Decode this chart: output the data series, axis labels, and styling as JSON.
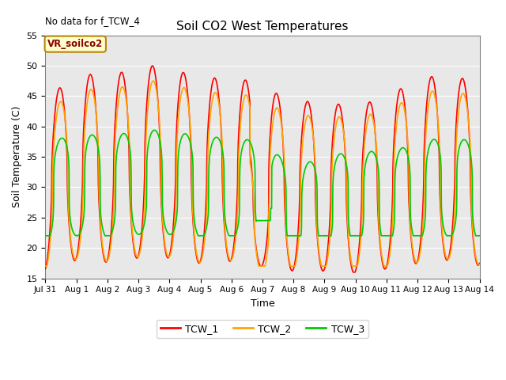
{
  "title": "Soil CO2 West Temperatures",
  "no_data_text": "No data for f_TCW_4",
  "ylabel": "Soil Temperature (C)",
  "xlabel": "Time",
  "ylim": [
    15,
    55
  ],
  "yticks": [
    15,
    20,
    25,
    30,
    35,
    40,
    45,
    50,
    55
  ],
  "background_color": "#e8e8e8",
  "legend_box_label": "VR_soilco2",
  "legend_entries": [
    "TCW_1",
    "TCW_2",
    "TCW_3"
  ],
  "line_colors": [
    "#ff0000",
    "#ffa500",
    "#00cc00"
  ],
  "x_tick_labels": [
    "Jul 31",
    "Aug 1",
    "Aug 2",
    "Aug 3",
    "Aug 4",
    "Aug 5",
    "Aug 6",
    "Aug 7",
    "Aug 8",
    "Aug 9",
    "Aug 10",
    "Aug 11",
    "Aug 12",
    "Aug 13",
    "Aug 14"
  ],
  "figsize": [
    6.4,
    4.8
  ],
  "dpi": 100
}
